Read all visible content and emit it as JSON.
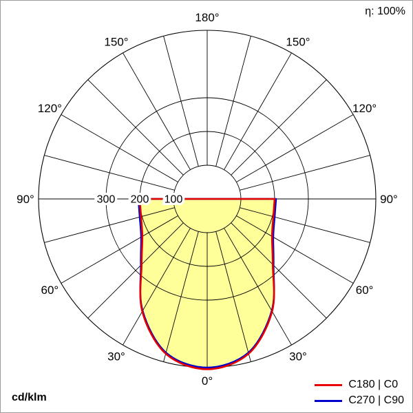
{
  "header": {
    "efficiency": "η: 100%"
  },
  "footer": {
    "unit": "cd/klm"
  },
  "legend": [
    {
      "label": "C180 | C0",
      "color": "#e60000"
    },
    {
      "label": "C270 | C90",
      "color": "#0000cc"
    }
  ],
  "chart_data": {
    "type": "polar",
    "unit": "cd/klm",
    "angle_axis": {
      "grid_step_deg": 15,
      "label_step_deg": 30,
      "labels": [
        "0°",
        "30°",
        "60°",
        "90°",
        "120°",
        "150°",
        "180°"
      ]
    },
    "r_axis": {
      "ticks": [
        100,
        200,
        300
      ],
      "tick_labels": [
        "100",
        "200",
        "300"
      ],
      "max": 500
    },
    "gamma_deg": [
      0,
      15,
      30,
      45,
      60,
      75,
      90
    ],
    "series": [
      {
        "name": "C270 | C90",
        "color": "#0000cc",
        "values": [
          500,
          472,
          383,
          278,
          226,
          207,
          204
        ]
      },
      {
        "name": "C180 | C0",
        "color": "#e60000",
        "values": [
          505,
          475,
          385,
          275,
          222,
          203,
          200
        ]
      }
    ],
    "fill_color": "#ffff99",
    "efficiency_percent": 100
  }
}
